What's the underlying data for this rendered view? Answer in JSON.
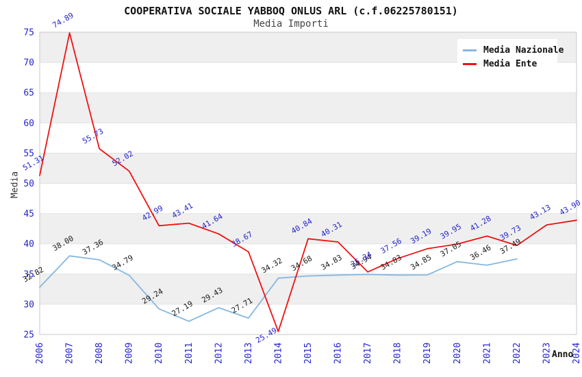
{
  "title": "COOPERATIVA SOCIALE YABBOQ ONLUS ARL (c.f.06225780151)",
  "subtitle": "Media Importi",
  "axes": {
    "y_label": "Media",
    "x_label": "Anno",
    "y_ticks": [
      25,
      30,
      35,
      40,
      45,
      50,
      55,
      60,
      65,
      70,
      75
    ]
  },
  "legend": {
    "items": [
      {
        "label": "Media Nazionale",
        "color": "#85b7e2"
      },
      {
        "label": "Media Ente",
        "color": "#ee1111"
      }
    ]
  },
  "colors": {
    "band": "#efefef",
    "gridline": "#e2e2e2",
    "plot_border": "#c8c8c8",
    "tick_label": "#2424cc",
    "ente_point_label": "#2424cc",
    "nazionale_point_label": "#1a1a1a"
  },
  "chart_data": {
    "type": "line",
    "title": "COOPERATIVA SOCIALE YABBOQ ONLUS ARL (c.f.06225780151)",
    "subtitle": "Media Importi",
    "xlabel": "Anno",
    "ylabel": "Media",
    "ylim": [
      25,
      75
    ],
    "grid": true,
    "legend_position": "top-right",
    "x": [
      2006,
      2007,
      2008,
      2009,
      2010,
      2011,
      2012,
      2013,
      2014,
      2015,
      2016,
      2017,
      2018,
      2019,
      2020,
      2021,
      2022,
      2023,
      2024
    ],
    "series": [
      {
        "name": "Media Nazionale",
        "color": "#85b7e2",
        "label_color": "#1a1a1a",
        "values": [
          32.82,
          38.0,
          37.36,
          34.79,
          29.24,
          27.19,
          29.43,
          27.71,
          34.32,
          34.68,
          34.83,
          34.94,
          34.83,
          34.85,
          37.05,
          36.46,
          37.49,
          null,
          null
        ]
      },
      {
        "name": "Media Ente",
        "color": "#ee1111",
        "label_color": "#2424cc",
        "values": [
          51.31,
          74.89,
          55.73,
          52.02,
          42.99,
          43.41,
          41.64,
          38.67,
          25.49,
          40.84,
          40.31,
          35.34,
          37.56,
          39.19,
          39.95,
          41.28,
          39.73,
          43.13,
          43.9
        ]
      }
    ]
  }
}
